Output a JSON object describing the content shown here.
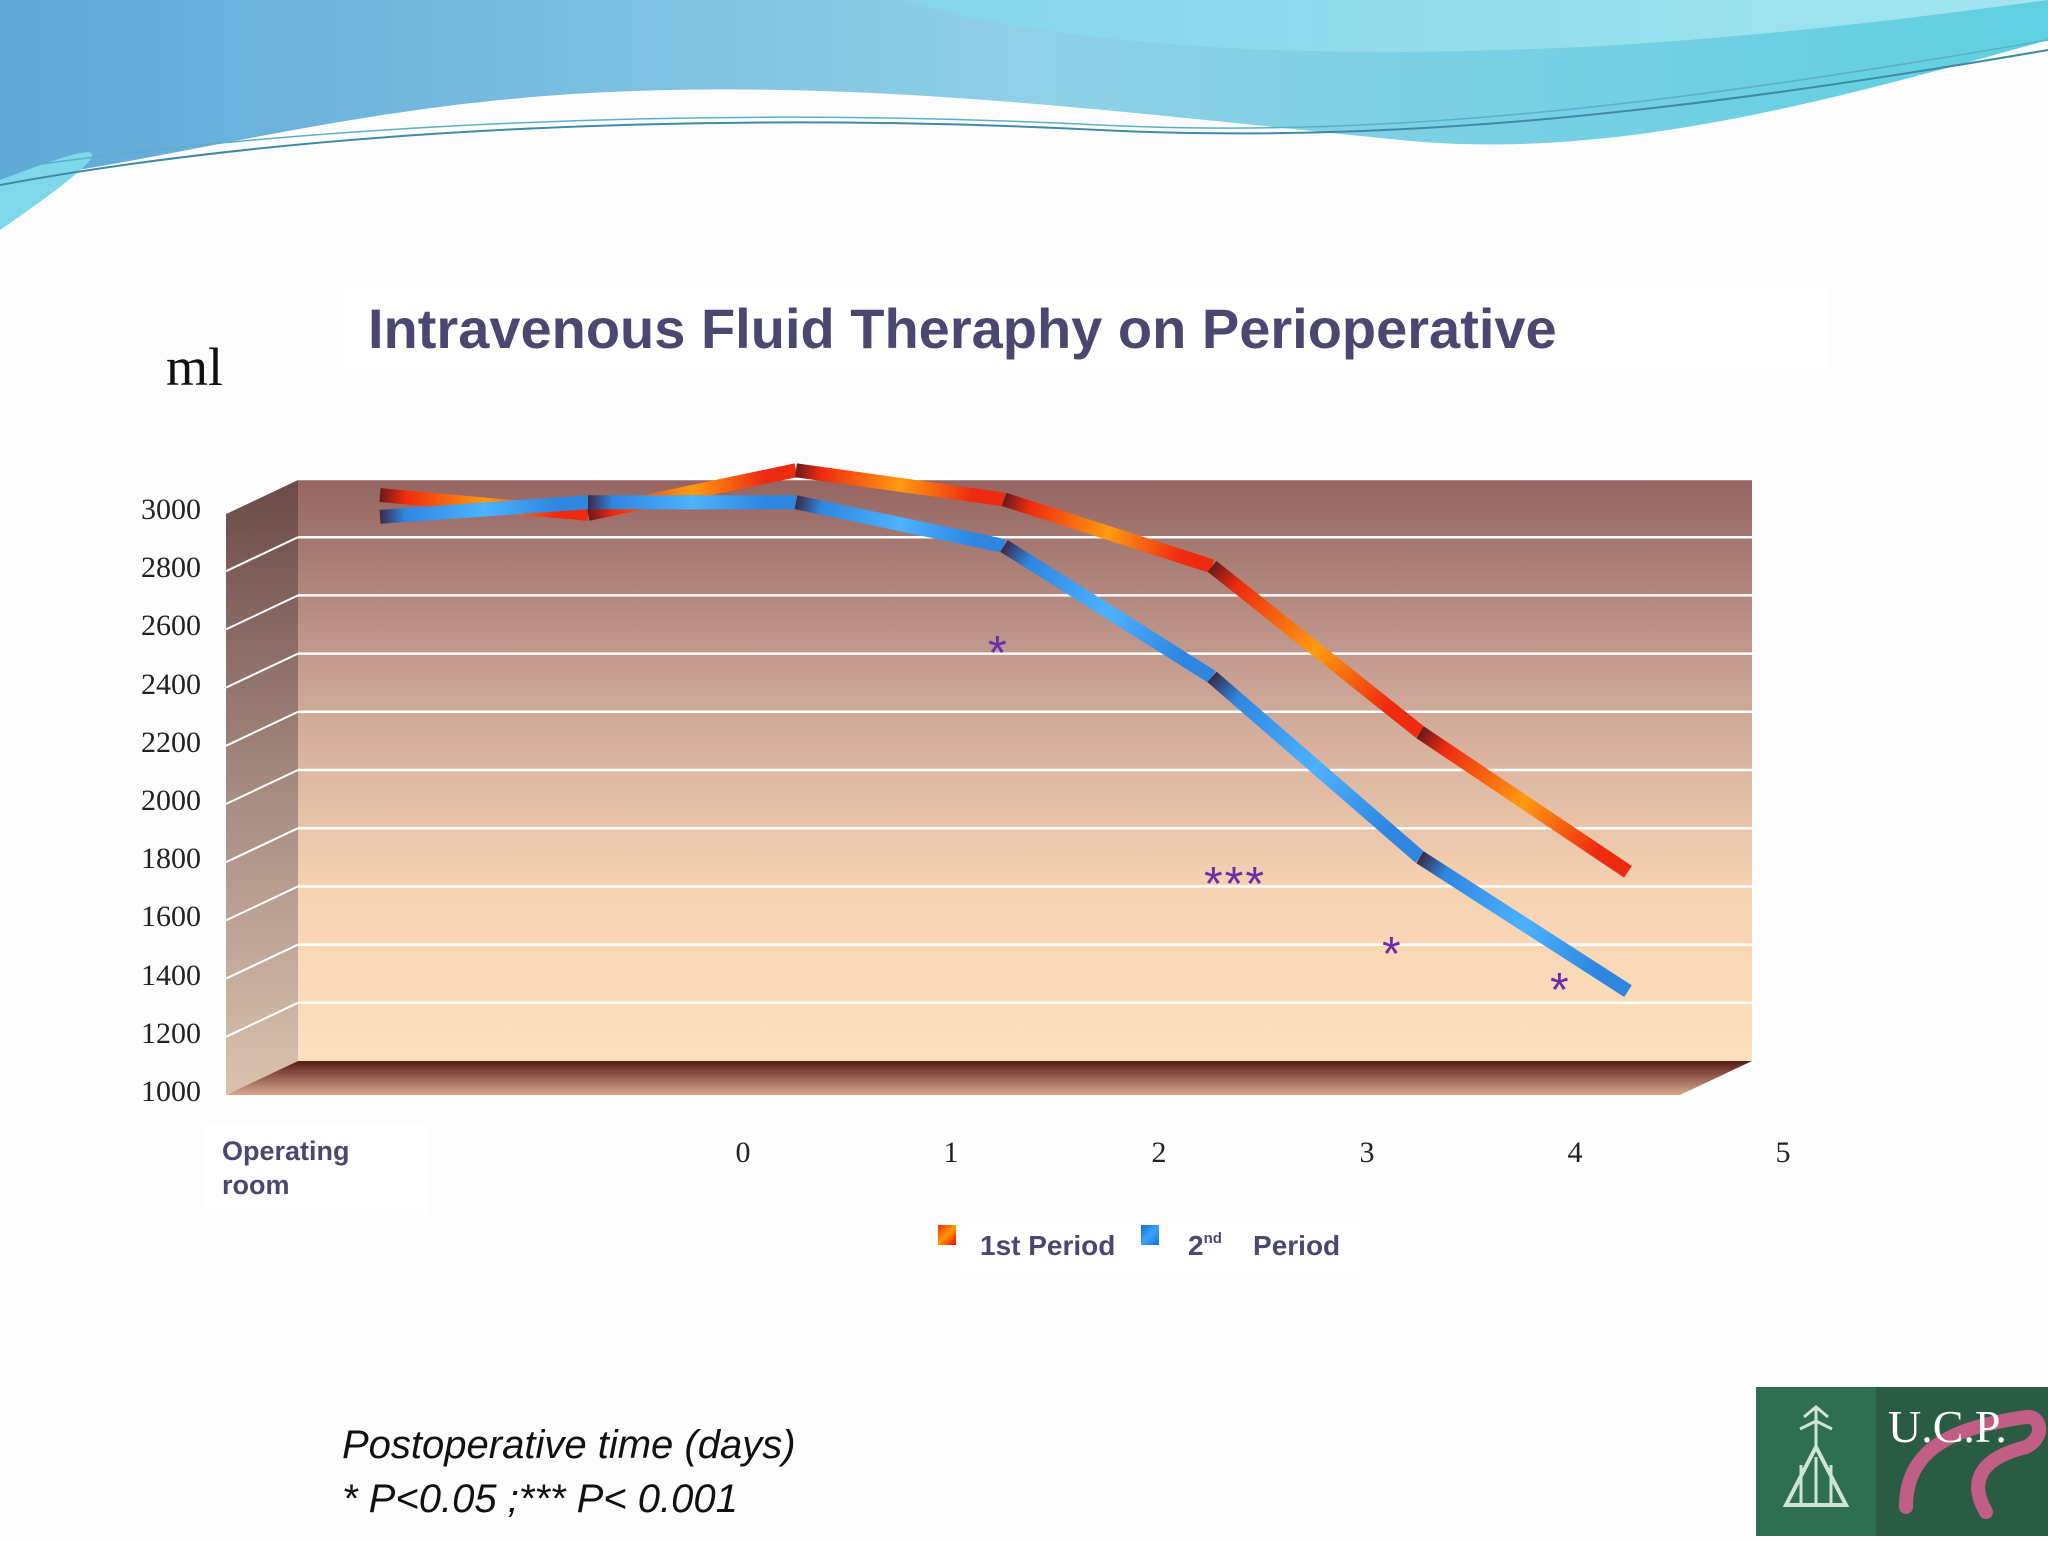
{
  "title": "Intravenous Fluid Theraphy on Perioperative",
  "y_unit": "ml",
  "footer": {
    "line1": "Postoperative time (days)",
    "line2": "* P<0.05 ;*** P< 0.001"
  },
  "legend": {
    "series1": "1st Period",
    "series2_prefix": "2",
    "series2_sup": "nd",
    "series2_suffix": "Period"
  },
  "logo": {
    "text": "U.C.P."
  },
  "colors": {
    "series1": "#ee2a10",
    "series2": "#2e86e0",
    "significance": "#6a2fa8",
    "title": "#4a4870"
  },
  "chart_data": {
    "type": "line",
    "title": "Intravenous Fluid Theraphy on Perioperative",
    "xlabel": "Postoperative time (days)",
    "ylabel": "ml",
    "ylim": [
      1000,
      3000
    ],
    "y_ticks": [
      "1000",
      "1200",
      "1400",
      "1600",
      "1800",
      "2000",
      "2200",
      "2400",
      "2600",
      "2800",
      "3000"
    ],
    "categories": [
      "Operating room",
      "0",
      "1",
      "2",
      "3",
      "4",
      "5"
    ],
    "series": [
      {
        "name": "1st Period",
        "values": [
          2945,
          2880,
          3030,
          2930,
          2700,
          2130,
          1650
        ],
        "segments": [
          [
            0,
            1
          ],
          [
            1,
            2
          ],
          [
            2,
            3
          ],
          [
            3,
            4
          ],
          [
            4,
            5
          ],
          [
            5,
            6
          ]
        ],
        "gap_after_index": 2
      },
      {
        "name": "2nd Period",
        "values": [
          2870,
          2920,
          2920,
          2770,
          2320,
          1700,
          1240
        ]
      }
    ],
    "annotations": [
      {
        "text": "*",
        "category": "2"
      },
      {
        "text": "***",
        "category": "3"
      },
      {
        "text": "*",
        "category": "4"
      },
      {
        "text": "*",
        "category": "5"
      }
    ],
    "grid": true,
    "legend": "bottom"
  }
}
